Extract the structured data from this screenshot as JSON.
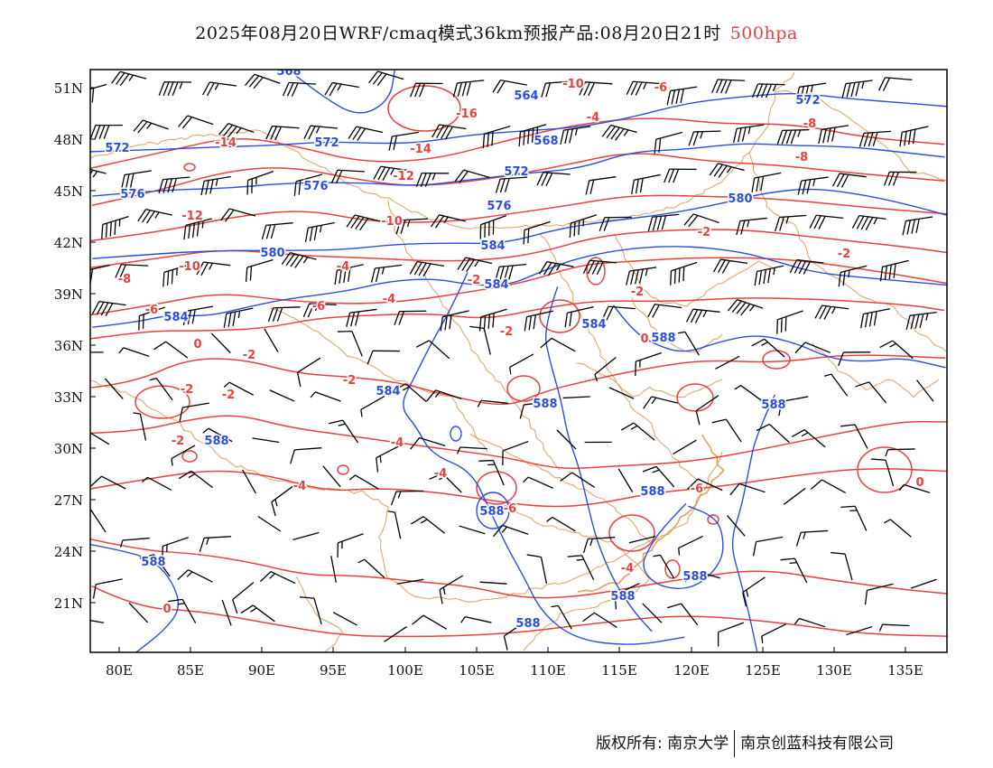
{
  "header": {
    "title": "2025年08月20日WRF/cmaq模式36km预报产品:08月20日21时",
    "level": "500hpa"
  },
  "map": {
    "lat_labels": [
      "51N",
      "48N",
      "45N",
      "42N",
      "39N",
      "36N",
      "33N",
      "30N",
      "27N",
      "24N",
      "21N"
    ],
    "lon_labels": [
      "80E",
      "85E",
      "90E",
      "95E",
      "100E",
      "105E",
      "110E",
      "115E",
      "120E",
      "125E",
      "130E",
      "135E"
    ],
    "colors": {
      "height_contour": "#2b4ee0",
      "temperature_contour": "#e8413e",
      "boundaries": "#e0a060",
      "wind_barbs": "#000000",
      "frame": "#000000"
    },
    "height_labels": [
      "568",
      "564",
      "568",
      "572",
      "572",
      "572",
      "572",
      "576",
      "576",
      "576",
      "580",
      "580",
      "584",
      "584",
      "584",
      "584",
      "584",
      "588",
      "588",
      "588",
      "588",
      "588",
      "588",
      "588",
      "588",
      "588",
      "588"
    ],
    "temperature_labels": [
      "-10",
      "-16",
      "-6",
      "-4",
      "-14",
      "-14",
      "-12",
      "-12",
      "-10",
      "-10",
      "-8",
      "-8",
      "-6",
      "-6",
      "-4",
      "-4",
      "-2",
      "-2",
      "-2",
      "-2",
      "-2",
      "-2",
      "-2",
      "-2",
      "-2",
      "-4",
      "-4",
      "-4",
      "-6",
      "-6",
      "-4",
      "0",
      "0",
      "0",
      "0",
      "-2",
      "-8"
    ]
  },
  "footer": {
    "copyright": "版权所有: 南京大学",
    "company": "南京创蓝科技有限公司"
  }
}
